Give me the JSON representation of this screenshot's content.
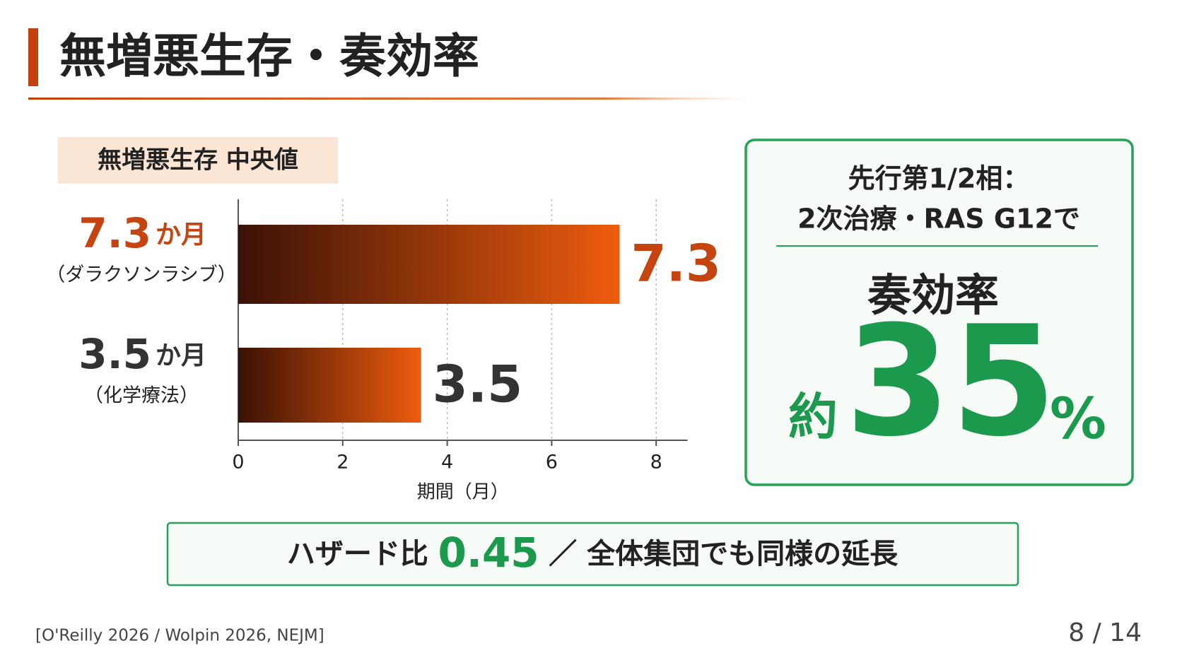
{
  "title": "無増悪生存・奏効率",
  "chart_data": {
    "type": "bar",
    "orientation": "horizontal",
    "subtitle": "無増悪生存 中央値",
    "categories": [
      "（ダラクソンラシブ）",
      "（化学療法）"
    ],
    "unit_label": "か月",
    "values": [
      7.3,
      3.5
    ],
    "label_colors": [
      "#c44510",
      "#333333"
    ],
    "gradient": [
      "#3a1106",
      "#ee5c0e"
    ],
    "xlim": [
      0,
      8.6
    ],
    "xticks": [
      0,
      2,
      4,
      6,
      8
    ],
    "xlabel": "期間（月）",
    "grid": true
  },
  "response_card": {
    "line1": "先行第1/2相：",
    "line2": "2次治療・RAS G12で",
    "label": "奏効率",
    "prefix": "約",
    "value": "35",
    "unit": "%"
  },
  "banner": {
    "label": "ハザード比",
    "value": "0.45",
    "text": "／ 全体集団でも同様の延長"
  },
  "footer": {
    "citation": "[O'Reilly 2026 / Wolpin 2026, NEJM]",
    "page": "8 / 14"
  }
}
